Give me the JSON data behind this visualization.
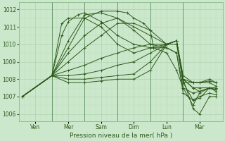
{
  "xlabel": "Pression niveau de la mer( hPa )",
  "bg_color": "#cce8cc",
  "plot_bg_color": "#cce8cc",
  "line_color": "#2d5a1b",
  "marker_color": "#2d5a1b",
  "grid_major_color": "#aaccaa",
  "grid_minor_color": "#bbddbb",
  "yticks": [
    1006,
    1007,
    1008,
    1009,
    1010,
    1011,
    1012
  ],
  "ylim": [
    1005.6,
    1012.4
  ],
  "xtick_labels": [
    "Ven",
    "Mer",
    "Sam",
    "Dim",
    "Lun",
    "Mar"
  ],
  "xtick_positions": [
    0.5,
    1.5,
    2.5,
    3.5,
    4.5,
    5.5
  ],
  "xlim": [
    0,
    6.2
  ],
  "vlines": [
    1.0,
    2.0,
    3.0,
    4.0,
    5.0
  ],
  "series": [
    {
      "x": [
        0.1,
        1.0,
        1.5,
        2.0,
        2.5,
        3.0,
        3.3,
        3.5,
        3.8,
        4.0,
        4.1,
        4.5,
        4.8,
        5.0,
        5.3,
        5.5,
        5.8,
        6.0
      ],
      "y": [
        1007.0,
        1008.2,
        1009.8,
        1011.5,
        1011.9,
        1011.9,
        1011.8,
        1011.5,
        1011.2,
        1010.8,
        1009.8,
        1009.5,
        1008.5,
        1007.5,
        1006.5,
        1007.2,
        1007.5,
        1007.3
      ]
    },
    {
      "x": [
        0.1,
        1.0,
        1.5,
        2.0,
        2.5,
        3.0,
        3.5,
        4.0,
        4.5,
        4.8,
        5.0,
        5.3,
        5.5,
        5.8,
        6.0
      ],
      "y": [
        1007.0,
        1008.2,
        1010.2,
        1011.7,
        1011.8,
        1011.5,
        1010.8,
        1010.0,
        1009.8,
        1009.5,
        1007.2,
        1006.8,
        1007.0,
        1007.2,
        1007.1
      ]
    },
    {
      "x": [
        0.1,
        1.0,
        1.3,
        1.5,
        1.8,
        2.0,
        2.5,
        3.0,
        3.5,
        4.0,
        4.5,
        4.8,
        5.0,
        5.3,
        5.5,
        5.8,
        6.0
      ],
      "y": [
        1007.0,
        1008.2,
        1010.5,
        1011.3,
        1011.7,
        1011.8,
        1011.3,
        1010.5,
        1010.0,
        1009.8,
        1009.8,
        1009.5,
        1007.5,
        1007.2,
        1007.3,
        1007.5,
        1007.4
      ]
    },
    {
      "x": [
        0.1,
        1.0,
        1.3,
        1.5,
        2.0,
        2.5,
        3.0,
        3.5,
        4.0,
        4.5,
        4.8,
        5.0,
        5.3,
        5.5,
        5.8,
        6.0
      ],
      "y": [
        1007.0,
        1008.2,
        1011.2,
        1011.5,
        1011.5,
        1011.0,
        1010.0,
        1009.5,
        1009.8,
        1010.0,
        1010.0,
        1007.8,
        1006.8,
        1006.9,
        1007.5,
        1007.5
      ]
    },
    {
      "x": [
        0.1,
        1.0,
        1.5,
        2.0,
        2.5,
        3.0,
        3.5,
        4.0,
        4.5,
        4.8,
        5.0,
        5.3,
        5.5,
        5.8,
        6.0
      ],
      "y": [
        1007.0,
        1008.2,
        1009.5,
        1010.5,
        1011.2,
        1011.5,
        1011.0,
        1010.5,
        1010.0,
        1010.2,
        1008.0,
        1007.5,
        1007.3,
        1007.5,
        1007.4
      ]
    },
    {
      "x": [
        0.1,
        1.0,
        1.5,
        2.0,
        2.5,
        3.0,
        3.5,
        4.0,
        4.5,
        4.8,
        5.0,
        5.3,
        5.5,
        5.8,
        6.0
      ],
      "y": [
        1007.0,
        1008.2,
        1009.0,
        1009.8,
        1010.5,
        1011.2,
        1011.2,
        1010.8,
        1010.0,
        1010.2,
        1008.2,
        1007.8,
        1007.8,
        1007.8,
        1007.6
      ]
    },
    {
      "x": [
        0.1,
        1.0,
        1.5,
        2.0,
        2.5,
        3.0,
        3.5,
        4.0,
        4.5,
        4.8,
        5.0,
        5.3,
        5.5,
        5.8,
        6.0
      ],
      "y": [
        1007.0,
        1008.2,
        1008.5,
        1008.8,
        1009.2,
        1009.5,
        1009.8,
        1010.0,
        1010.0,
        1010.2,
        1007.8,
        1007.8,
        1007.8,
        1008.0,
        1007.8
      ]
    },
    {
      "x": [
        0.1,
        1.0,
        1.5,
        2.0,
        2.5,
        3.0,
        3.5,
        4.0,
        4.5,
        4.8,
        5.0,
        5.3,
        5.5,
        5.8,
        6.0
      ],
      "y": [
        1007.0,
        1008.2,
        1008.2,
        1008.3,
        1008.5,
        1008.8,
        1009.0,
        1009.5,
        1010.0,
        1010.2,
        1008.0,
        1007.8,
        1007.8,
        1007.9,
        1007.8
      ]
    },
    {
      "x": [
        0.1,
        1.0,
        1.5,
        2.0,
        2.5,
        3.0,
        3.5,
        4.0,
        4.5,
        4.8,
        5.0,
        5.3,
        5.5,
        5.8,
        6.0
      ],
      "y": [
        1007.0,
        1008.2,
        1008.0,
        1008.0,
        1008.1,
        1008.2,
        1008.3,
        1009.0,
        1010.0,
        1010.2,
        1008.0,
        1007.5,
        1007.5,
        1007.5,
        1007.5
      ]
    },
    {
      "x": [
        0.1,
        1.0,
        1.5,
        2.0,
        2.5,
        3.0,
        3.5,
        4.0,
        4.5,
        4.8,
        5.0,
        5.3,
        5.5,
        5.8,
        6.0
      ],
      "y": [
        1007.0,
        1008.2,
        1007.8,
        1007.8,
        1007.9,
        1008.0,
        1008.0,
        1008.5,
        1010.0,
        1010.2,
        1008.0,
        1006.3,
        1006.0,
        1007.0,
        1007.0
      ]
    }
  ]
}
